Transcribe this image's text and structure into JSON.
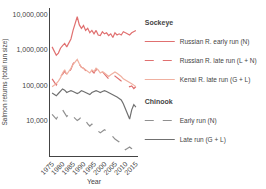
{
  "chart_data": {
    "type": "line",
    "xlabel": "Year",
    "ylabel": "Salmon returns (total run size)",
    "x": [
      1975,
      1976,
      1977,
      1978,
      1979,
      1980,
      1981,
      1982,
      1983,
      1984,
      1985,
      1986,
      1987,
      1988,
      1989,
      1990,
      1991,
      1992,
      1993,
      1994,
      1995,
      1996,
      1997,
      1998,
      1999,
      2000,
      2001,
      2002,
      2003,
      2004,
      2005,
      2006,
      2007,
      2008,
      2009,
      2010,
      2011,
      2012,
      2013,
      2014,
      2015
    ],
    "xlim": [
      1974,
      2016
    ],
    "xticks": [
      1975,
      1980,
      1985,
      1990,
      1995,
      2000,
      2005,
      2010,
      2015
    ],
    "ylim": [
      1000,
      15000000
    ],
    "yticks": [
      {
        "value": 10000,
        "label": "10,000"
      },
      {
        "value": 100000,
        "label": "100,000"
      },
      {
        "value": 1000000,
        "label": "1,000,000"
      },
      {
        "value": 10000000,
        "label": "10,000,000"
      }
    ],
    "log": "y",
    "grid": false,
    "legend": "right",
    "series": [
      {
        "name": "Russian R. early run (N)",
        "group": "Sockeye",
        "color": "#e07070",
        "line_style": "solid",
        "values": [
          1200000,
          900000,
          700000,
          800000,
          1100000,
          1300000,
          1500000,
          1200000,
          1600000,
          2000000,
          3500000,
          5500000,
          8500000,
          5000000,
          4000000,
          4800000,
          3500000,
          4000000,
          3000000,
          3500000,
          2800000,
          3500000,
          2600000,
          2500000,
          3200000,
          2800000,
          3000000,
          2500000,
          2800000,
          2200000,
          3000000,
          2600000,
          2800000,
          2600000,
          3200000,
          3000000,
          2800000,
          2600000,
          3000000,
          3200000,
          3500000
        ]
      },
      {
        "name": "Russian R. late run (L + N)",
        "group": "Sockeye",
        "color": "#e07070",
        "line_style": "dashed",
        "values": [
          150000,
          120000,
          100000,
          130000,
          180000,
          200000,
          250000,
          180000,
          220000,
          280000,
          400000,
          500000,
          480000,
          380000,
          320000,
          300000,
          250000,
          220000,
          200000,
          250000,
          220000,
          280000,
          240000,
          200000,
          240000,
          200000,
          170000,
          150000,
          170000,
          150000,
          180000,
          160000,
          150000,
          130000,
          120000,
          110000,
          100000,
          90000,
          95000,
          80000,
          90000
        ]
      },
      {
        "name": "Kenai R. late run (G + L)",
        "group": "Sockeye",
        "color": "#f0b0a0",
        "line_style": "solid",
        "values": [
          90000,
          100000,
          110000,
          130000,
          160000,
          220000,
          270000,
          200000,
          240000,
          300000,
          380000,
          450000,
          530000,
          400000,
          320000,
          300000,
          270000,
          240000,
          220000,
          270000,
          240000,
          300000,
          270000,
          220000,
          240000,
          220000,
          200000,
          175000,
          195000,
          215000,
          235000,
          215000,
          195000,
          175000,
          150000,
          140000,
          130000,
          120000,
          110000,
          100000,
          90000
        ]
      },
      {
        "name": "Early run (N)",
        "group": "Chinook",
        "color": "#909090",
        "line_style": "dashed",
        "values": [
          15000,
          13000,
          11000,
          14000,
          18000,
          20000,
          16000,
          13000,
          15000,
          16000,
          13000,
          11000,
          10000,
          11000,
          13000,
          11000,
          10000,
          8000,
          7000,
          8000,
          7000,
          6000,
          5000,
          4500,
          5000,
          5500,
          5000,
          4500,
          4000,
          3500,
          3000,
          2800,
          2500,
          2000,
          1800,
          1500,
          1600,
          1800,
          1600,
          1300,
          1100
        ]
      },
      {
        "name": "Late run (G + L)",
        "group": "Chinook",
        "color": "#707070",
        "line_style": "solid",
        "values": [
          60000,
          55000,
          50000,
          58000,
          70000,
          78000,
          72000,
          62000,
          66000,
          70000,
          66000,
          62000,
          58000,
          62000,
          70000,
          66000,
          62000,
          58000,
          54000,
          62000,
          66000,
          70000,
          66000,
          62000,
          66000,
          70000,
          66000,
          62000,
          58000,
          54000,
          50000,
          46000,
          42000,
          38000,
          30000,
          22000,
          15000,
          11000,
          20000,
          28000,
          24000
        ]
      }
    ]
  }
}
